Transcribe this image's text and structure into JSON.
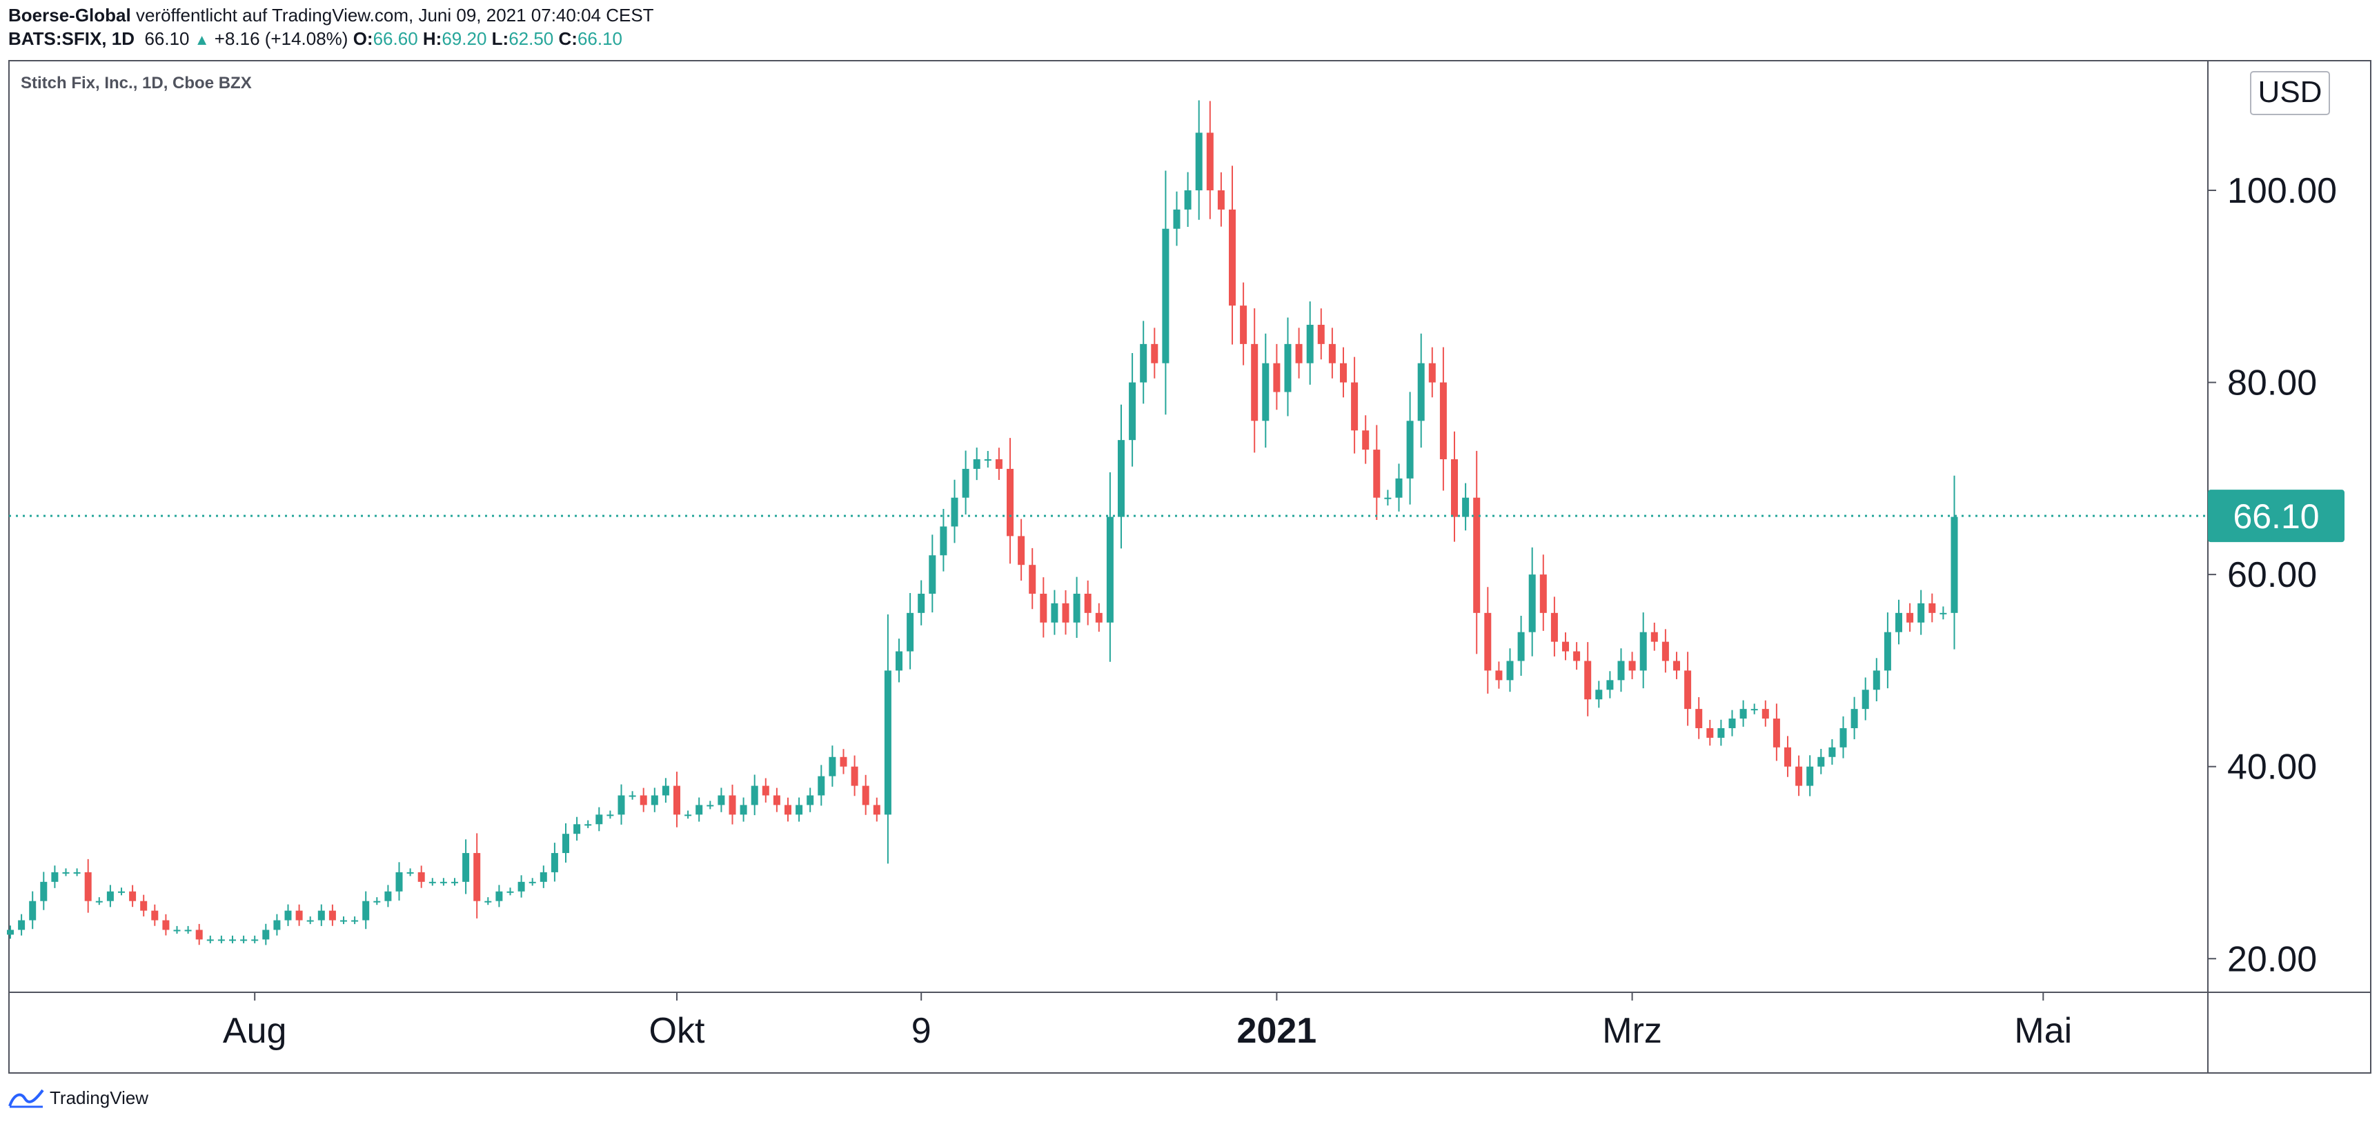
{
  "header": {
    "publisher": "Boerse-Global",
    "published_text": "veröffentlicht auf TradingView.com, Juni 09, 2021 07:40:04 CEST",
    "symbol": "BATS:SFIX, 1D",
    "last": "66.10",
    "change": "+8.16 (+14.08%)",
    "o_label": "O:",
    "o_value": "66.60",
    "h_label": "H:",
    "h_value": "69.20",
    "l_label": "L:",
    "l_value": "62.50",
    "c_label": "C:",
    "c_value": "66.10"
  },
  "chart_data": {
    "type": "candlestick",
    "title": "Stitch Fix, Inc., 1D, Cboe BZX",
    "currency": "USD",
    "last_price": 66.1,
    "last_price_label": "66.10",
    "ylim": [
      16.5,
      113.5
    ],
    "yticks": [
      {
        "v": 20,
        "label": "20.00"
      },
      {
        "v": 40,
        "label": "40.00"
      },
      {
        "v": 60,
        "label": "60.00"
      },
      {
        "v": 80,
        "label": "80.00"
      },
      {
        "v": 100,
        "label": "100.00"
      }
    ],
    "xticks": [
      {
        "i": 22,
        "label": "Aug",
        "bold": false
      },
      {
        "i": 60,
        "label": "Okt",
        "bold": false
      },
      {
        "i": 82,
        "label": "9",
        "bold": false
      },
      {
        "i": 114,
        "label": "2021",
        "bold": true
      },
      {
        "i": 146,
        "label": "Mrz",
        "bold": false
      },
      {
        "i": 183,
        "label": "Mai",
        "bold": false
      }
    ],
    "colors": {
      "up": "#26a69a",
      "down": "#ef5350",
      "grid": "#e0e3eb",
      "axis_text": "#131722"
    },
    "grid": false,
    "close": [
      23,
      24,
      26,
      28,
      29,
      29,
      29,
      26,
      26,
      27,
      27,
      26,
      25,
      24,
      23,
      23,
      23,
      22,
      22,
      22,
      22,
      22,
      22,
      23,
      24,
      25,
      24,
      24,
      25,
      24,
      24,
      24,
      26,
      26,
      27,
      29,
      29,
      28,
      28,
      28,
      28,
      31,
      26,
      26,
      27,
      27,
      28,
      28,
      29,
      31,
      33,
      34,
      34,
      35,
      35,
      37,
      37,
      36,
      37,
      38,
      35,
      35,
      36,
      36,
      37,
      35,
      36,
      38,
      37,
      36,
      35,
      36,
      37,
      39,
      41,
      40,
      38,
      36,
      35,
      50,
      52,
      56,
      58,
      62,
      65,
      68,
      71,
      72,
      72,
      71,
      64,
      61,
      58,
      55,
      57,
      55,
      58,
      56,
      55,
      66,
      74,
      80,
      84,
      82,
      96,
      98,
      100,
      106,
      100,
      98,
      88,
      84,
      76,
      82,
      79,
      84,
      82,
      86,
      84,
      82,
      80,
      75,
      73,
      68,
      68,
      70,
      76,
      82,
      80,
      72,
      66,
      68,
      56,
      50,
      49,
      51,
      54,
      60,
      56,
      53,
      52,
      51,
      47,
      48,
      49,
      51,
      50,
      54,
      53,
      51,
      50,
      46,
      44,
      43,
      44,
      45,
      46,
      46,
      45,
      42,
      40,
      38,
      40,
      41,
      42,
      44,
      46,
      48,
      50,
      54,
      56,
      55,
      57,
      56,
      56,
      66
    ]
  }
}
